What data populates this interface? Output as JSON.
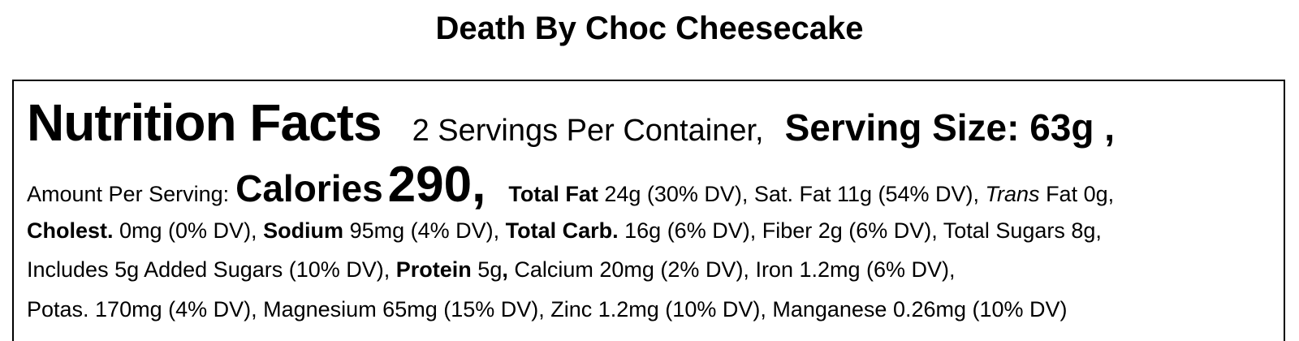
{
  "product": {
    "title": "Death By Choc Cheesecake"
  },
  "label": {
    "heading": "Nutrition Facts",
    "servings": "2 Servings Per Container,",
    "serving_size": "Serving Size: 63g ,",
    "amount_label": "Amount Per Serving:",
    "calories_label": "Calories",
    "calories_value": "290,",
    "total_fat_label": "Total Fat",
    "total_fat_value": " 24g (30% DV), Sat. Fat 11g (54% DV), ",
    "trans_label": "Trans",
    "trans_value": " Fat 0g,",
    "cholest_label": "Cholest.",
    "cholest_value": " 0mg (0% DV), ",
    "sodium_label": "Sodium",
    "sodium_value": " 95mg (4% DV), ",
    "carb_label": "Total Carb.",
    "carb_value": " 16g (6% DV), Fiber 2g (6% DV), Total Sugars 8g,",
    "added_sugars": "Includes 5g Added Sugars (10% DV), ",
    "protein_label": "Protein",
    "protein_value": " 5g",
    "protein_comma": ",",
    "minerals_line3": " Calcium 20mg (2% DV), Iron 1.2mg (6% DV),",
    "minerals_line4": "Potas. 170mg (4% DV), Magnesium 65mg (15% DV), Zinc 1.2mg (10% DV), Manganese 0.26mg (10% DV)"
  }
}
